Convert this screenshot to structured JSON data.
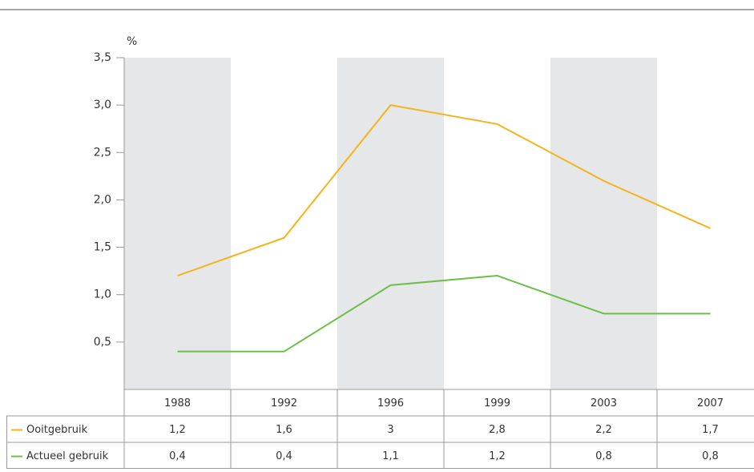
{
  "chart_data": {
    "type": "line",
    "y_label": "%",
    "categories": [
      "1988",
      "1992",
      "1996",
      "1999",
      "2003",
      "2007"
    ],
    "series": [
      {
        "name": "Ooitgebruik",
        "color": "#f5b31c",
        "values": [
          1.2,
          1.6,
          3,
          2.8,
          2.2,
          1.7
        ],
        "value_labels": [
          "1,2",
          "1,6",
          "3",
          "2,8",
          "2,2",
          "1,7"
        ]
      },
      {
        "name": "Actueel gebruik",
        "color": "#6cc04a",
        "values": [
          0.4,
          0.4,
          1.1,
          1.2,
          0.8,
          0.8
        ],
        "value_labels": [
          "0,4",
          "0,4",
          "1,1",
          "1,2",
          "0,8",
          "0,8"
        ]
      }
    ],
    "ylim": [
      0,
      3.5
    ],
    "yticks": [
      {
        "value": 0.5,
        "label": "0,5"
      },
      {
        "value": 1,
        "label": "1,0"
      },
      {
        "value": 1.5,
        "label": "1,5"
      },
      {
        "value": 2,
        "label": "2,0"
      },
      {
        "value": 2.5,
        "label": "2,5"
      },
      {
        "value": 3,
        "label": "3,0"
      },
      {
        "value": 3.5,
        "label": "3,5"
      }
    ]
  }
}
